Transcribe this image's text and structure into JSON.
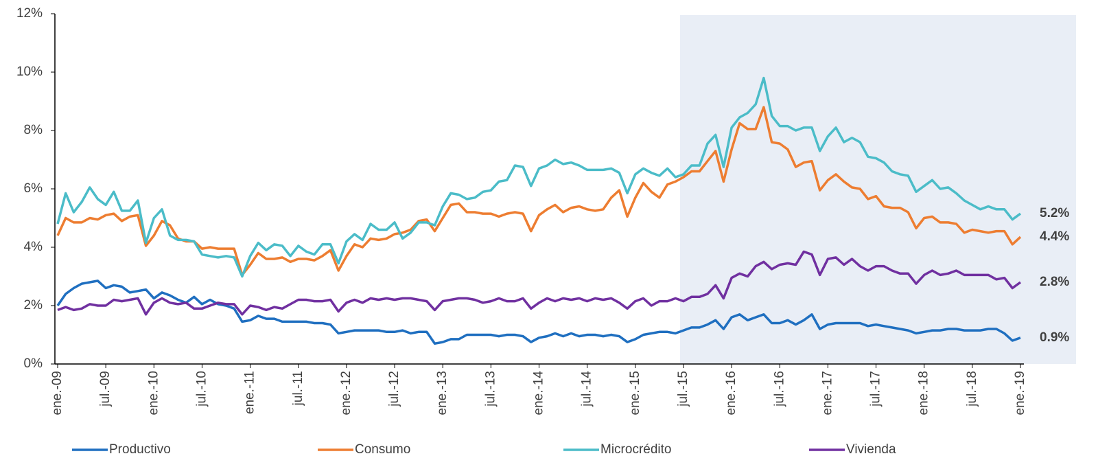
{
  "chart_data": {
    "type": "line",
    "categories": [
      "ene.-09",
      null,
      null,
      null,
      null,
      null,
      "jul.-09",
      null,
      null,
      null,
      null,
      null,
      "ene.-10",
      null,
      null,
      null,
      null,
      null,
      "jul.-10",
      null,
      null,
      null,
      null,
      null,
      "ene.-11",
      null,
      null,
      null,
      null,
      null,
      "jul.-11",
      null,
      null,
      null,
      null,
      null,
      "ene.-12",
      null,
      null,
      null,
      null,
      null,
      "jul.-12",
      null,
      null,
      null,
      null,
      null,
      "ene.-13",
      null,
      null,
      null,
      null,
      null,
      "jul.-13",
      null,
      null,
      null,
      null,
      null,
      "ene.-14",
      null,
      null,
      null,
      null,
      null,
      "jul.-14",
      null,
      null,
      null,
      null,
      null,
      "ene.-15",
      null,
      null,
      null,
      null,
      null,
      "jul.-15",
      null,
      null,
      null,
      null,
      null,
      "ene.-16",
      null,
      null,
      null,
      null,
      null,
      "jul.-16",
      null,
      null,
      null,
      null,
      null,
      "ene.-17",
      null,
      null,
      null,
      null,
      null,
      "jul.-17",
      null,
      null,
      null,
      null,
      null,
      "ene.-18",
      null,
      null,
      null,
      null,
      null,
      "jul.-18",
      null,
      null,
      null,
      null,
      null,
      "ene.-19"
    ],
    "series": [
      {
        "name": "Productivo",
        "color": "#1f6fc0",
        "end_label": "0.9%",
        "values": [
          2.0,
          2.4,
          2.6,
          2.75,
          2.8,
          2.85,
          2.6,
          2.7,
          2.65,
          2.45,
          2.5,
          2.55,
          2.25,
          2.45,
          2.35,
          2.2,
          2.1,
          2.3,
          2.05,
          2.2,
          2.05,
          2.0,
          1.9,
          1.45,
          1.5,
          1.65,
          1.55,
          1.55,
          1.45,
          1.45,
          1.45,
          1.45,
          1.4,
          1.4,
          1.35,
          1.05,
          1.1,
          1.15,
          1.15,
          1.15,
          1.15,
          1.1,
          1.1,
          1.15,
          1.05,
          1.1,
          1.1,
          0.7,
          0.75,
          0.85,
          0.85,
          1.0,
          1.0,
          1.0,
          1.0,
          0.95,
          1.0,
          1.0,
          0.95,
          0.75,
          0.9,
          0.95,
          1.05,
          0.95,
          1.05,
          0.95,
          1.0,
          1.0,
          0.95,
          1.0,
          0.95,
          0.75,
          0.85,
          1.0,
          1.05,
          1.1,
          1.1,
          1.05,
          1.15,
          1.25,
          1.25,
          1.35,
          1.5,
          1.2,
          1.6,
          1.7,
          1.5,
          1.6,
          1.7,
          1.4,
          1.4,
          1.5,
          1.35,
          1.5,
          1.7,
          1.2,
          1.35,
          1.4,
          1.4,
          1.4,
          1.4,
          1.3,
          1.35,
          1.3,
          1.25,
          1.2,
          1.15,
          1.05,
          1.1,
          1.15,
          1.15,
          1.2,
          1.2,
          1.15,
          1.15,
          1.15,
          1.2,
          1.2,
          1.05,
          0.8,
          0.9
        ]
      },
      {
        "name": "Consumo",
        "color": "#ed7d31",
        "end_label": "4.4%",
        "values": [
          4.4,
          5.0,
          4.85,
          4.85,
          5.0,
          4.95,
          5.1,
          5.15,
          4.9,
          5.05,
          5.1,
          4.05,
          4.4,
          4.9,
          4.75,
          4.3,
          4.2,
          4.2,
          3.95,
          4.0,
          3.95,
          3.95,
          3.95,
          3.05,
          3.4,
          3.8,
          3.6,
          3.6,
          3.65,
          3.5,
          3.6,
          3.6,
          3.55,
          3.7,
          3.9,
          3.2,
          3.7,
          4.1,
          4.0,
          4.3,
          4.25,
          4.3,
          4.45,
          4.5,
          4.6,
          4.9,
          4.95,
          4.55,
          5.0,
          5.45,
          5.5,
          5.2,
          5.2,
          5.15,
          5.15,
          5.05,
          5.15,
          5.2,
          5.15,
          4.55,
          5.1,
          5.3,
          5.45,
          5.2,
          5.35,
          5.4,
          5.3,
          5.25,
          5.3,
          5.7,
          5.95,
          5.05,
          5.7,
          6.2,
          5.9,
          5.7,
          6.15,
          6.25,
          6.4,
          6.6,
          6.6,
          6.95,
          7.3,
          6.25,
          7.35,
          8.25,
          8.05,
          8.05,
          8.8,
          7.6,
          7.55,
          7.35,
          6.75,
          6.9,
          6.95,
          5.95,
          6.3,
          6.5,
          6.25,
          6.05,
          6.0,
          5.65,
          5.75,
          5.4,
          5.35,
          5.35,
          5.2,
          4.65,
          5.0,
          5.05,
          4.85,
          4.85,
          4.8,
          4.5,
          4.6,
          4.55,
          4.5,
          4.55,
          4.55,
          4.1,
          4.35
        ]
      },
      {
        "name": "Microcrédito",
        "color": "#4bbcc8",
        "end_label": "5.2%",
        "values": [
          4.8,
          5.85,
          5.2,
          5.55,
          6.05,
          5.65,
          5.45,
          5.9,
          5.25,
          5.25,
          5.6,
          4.15,
          5.0,
          5.3,
          4.4,
          4.25,
          4.25,
          4.2,
          3.75,
          3.7,
          3.65,
          3.7,
          3.65,
          3.0,
          3.7,
          4.15,
          3.9,
          4.1,
          4.05,
          3.7,
          4.05,
          3.85,
          3.75,
          4.1,
          4.1,
          3.45,
          4.2,
          4.45,
          4.25,
          4.8,
          4.6,
          4.6,
          4.85,
          4.3,
          4.5,
          4.85,
          4.85,
          4.75,
          5.4,
          5.85,
          5.8,
          5.65,
          5.7,
          5.9,
          5.95,
          6.25,
          6.3,
          6.8,
          6.75,
          6.1,
          6.7,
          6.8,
          7.0,
          6.85,
          6.9,
          6.8,
          6.65,
          6.65,
          6.65,
          6.7,
          6.55,
          5.85,
          6.5,
          6.7,
          6.55,
          6.45,
          6.7,
          6.4,
          6.5,
          6.8,
          6.8,
          7.55,
          7.85,
          6.75,
          8.1,
          8.45,
          8.6,
          8.9,
          9.8,
          8.5,
          8.15,
          8.15,
          8.0,
          8.1,
          8.1,
          7.3,
          7.8,
          8.1,
          7.6,
          7.75,
          7.6,
          7.1,
          7.05,
          6.9,
          6.6,
          6.5,
          6.45,
          5.9,
          6.1,
          6.3,
          6.0,
          6.05,
          5.85,
          5.6,
          5.45,
          5.3,
          5.4,
          5.3,
          5.3,
          4.95,
          5.15
        ]
      },
      {
        "name": "Vivienda",
        "color": "#7030a0",
        "end_label": "2.8%",
        "values": [
          1.85,
          1.95,
          1.85,
          1.9,
          2.05,
          2.0,
          2.0,
          2.2,
          2.15,
          2.2,
          2.25,
          1.7,
          2.1,
          2.25,
          2.1,
          2.05,
          2.1,
          1.9,
          1.9,
          2.0,
          2.1,
          2.05,
          2.05,
          1.7,
          2.0,
          1.95,
          1.85,
          1.95,
          1.9,
          2.05,
          2.2,
          2.2,
          2.15,
          2.15,
          2.2,
          1.8,
          2.1,
          2.2,
          2.1,
          2.25,
          2.2,
          2.25,
          2.2,
          2.25,
          2.25,
          2.2,
          2.15,
          1.85,
          2.15,
          2.2,
          2.25,
          2.25,
          2.2,
          2.1,
          2.15,
          2.25,
          2.15,
          2.15,
          2.25,
          1.9,
          2.1,
          2.25,
          2.15,
          2.25,
          2.2,
          2.25,
          2.15,
          2.25,
          2.2,
          2.25,
          2.1,
          1.9,
          2.15,
          2.25,
          2.0,
          2.15,
          2.15,
          2.25,
          2.15,
          2.3,
          2.3,
          2.4,
          2.7,
          2.25,
          2.95,
          3.1,
          3.0,
          3.35,
          3.5,
          3.25,
          3.4,
          3.45,
          3.4,
          3.85,
          3.75,
          3.05,
          3.6,
          3.65,
          3.4,
          3.6,
          3.35,
          3.2,
          3.35,
          3.35,
          3.2,
          3.1,
          3.1,
          2.75,
          3.05,
          3.2,
          3.05,
          3.1,
          3.2,
          3.05,
          3.05,
          3.05,
          3.05,
          2.9,
          2.95,
          2.6,
          2.8
        ]
      }
    ],
    "ylim": [
      0,
      12
    ],
    "yticks": [
      {
        "value": 0,
        "label": "0%"
      },
      {
        "value": 2,
        "label": "2%"
      },
      {
        "value": 4,
        "label": "4%"
      },
      {
        "value": 6,
        "label": "6%"
      },
      {
        "value": 8,
        "label": "8%"
      },
      {
        "value": 10,
        "label": "10%"
      },
      {
        "value": 12,
        "label": "12%"
      }
    ],
    "grid": false
  }
}
